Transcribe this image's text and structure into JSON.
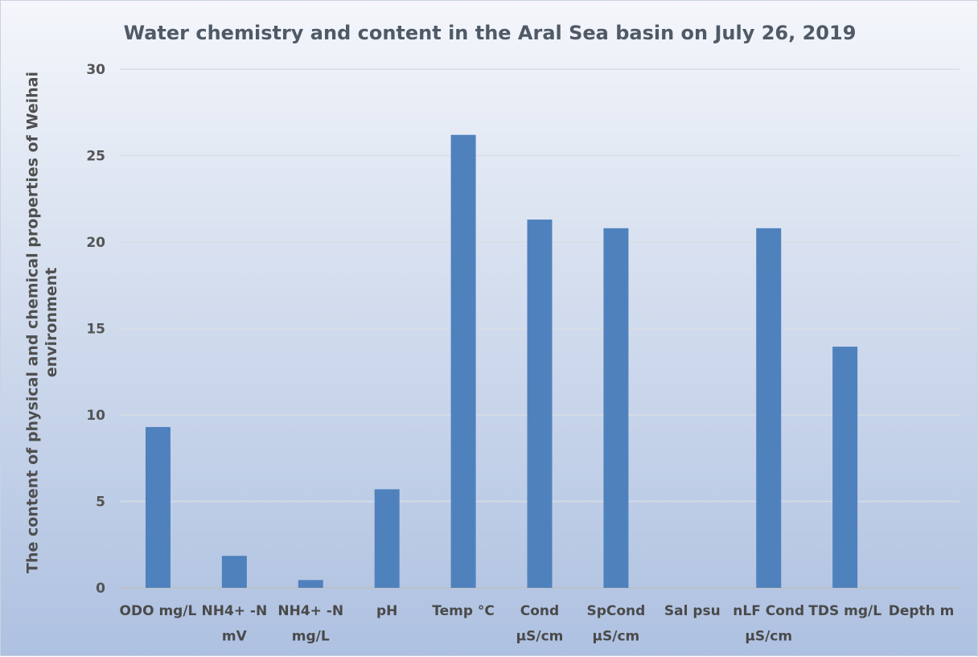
{
  "chart_data": {
    "type": "bar",
    "title": "Water chemistry and content in the Aral Sea basin on July 26, 2019",
    "ylabel": "The content of physical and chemical properties of Weihai environment",
    "xlabel": "",
    "categories": [
      "ODO mg/L",
      "NH4+ -N mV",
      "NH4+ -N mg/L",
      "pH",
      "Temp °C",
      "Cond µS/cm",
      "SpCond µS/cm",
      "Sal psu",
      "nLF Cond µS/cm",
      "TDS mg/L",
      "Depth m"
    ],
    "values": [
      9.3,
      1.85,
      0.45,
      5.7,
      26.2,
      21.3,
      20.8,
      0,
      20.8,
      13.95,
      0
    ],
    "ylim": [
      0,
      30
    ],
    "yticks": [
      0,
      5,
      10,
      15,
      20,
      25,
      30
    ],
    "grid": true,
    "legend": "none",
    "colors": {
      "bar": "#4f81bd",
      "grid": "#d9dde3",
      "axis": "#bfbfbf"
    }
  }
}
